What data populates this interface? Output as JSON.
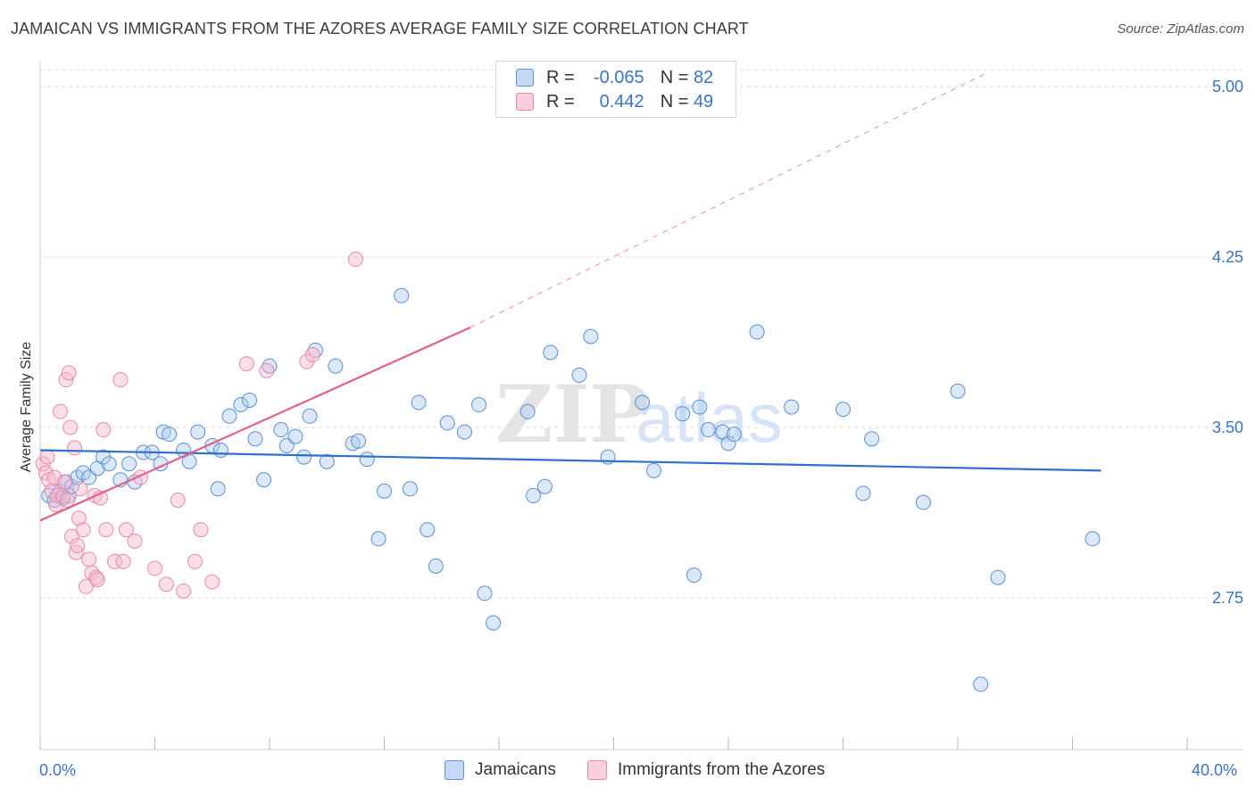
{
  "header": {
    "title": "JAMAICAN VS IMMIGRANTS FROM THE AZORES AVERAGE FAMILY SIZE CORRELATION CHART",
    "source": "Source: ZipAtlas.com"
  },
  "legend": {
    "series1": {
      "r_label": "R = ",
      "r_value": "-0.065",
      "n_label": "N = ",
      "n_value": "82"
    },
    "series2": {
      "r_label": "R = ",
      "r_value": "0.442",
      "n_label": "N = ",
      "n_value": "49"
    }
  },
  "colors": {
    "blue_fill": "#aecbf0",
    "blue_stroke": "#5b8fd6",
    "blue_line": "#2f6fcb",
    "pink_fill": "#f6b9cc",
    "pink_stroke": "#e98aa8",
    "pink_line": "#e0608b",
    "grid": "#dddddd",
    "axis_text": "#3b74c6"
  },
  "chart_data": {
    "type": "scatter",
    "title": "JAMAICAN VS IMMIGRANTS FROM THE AZORES AVERAGE FAMILY SIZE CORRELATION CHART",
    "xlabel": "",
    "ylabel": "Average Family Size",
    "xlim": [
      0,
      40
    ],
    "ylim": [
      2.0,
      5.1
    ],
    "x_tick_labels": [
      "0.0%",
      "40.0%"
    ],
    "y_ticks": [
      2.75,
      3.5,
      4.25,
      5.0
    ],
    "y_tick_labels": [
      "2.75",
      "3.50",
      "4.25",
      "5.00"
    ],
    "grid": true,
    "legend_position": "top-center",
    "watermark": "ZIPatlas",
    "series": [
      {
        "name": "Jamaicans",
        "r": -0.065,
        "n": 82,
        "trend": {
          "x0": 0,
          "y0": 3.4,
          "x1": 37,
          "y1": 3.31
        },
        "points": [
          [
            0.3,
            3.2
          ],
          [
            0.5,
            3.18
          ],
          [
            0.7,
            3.22
          ],
          [
            0.8,
            3.19
          ],
          [
            0.9,
            3.26
          ],
          [
            1.0,
            3.2
          ],
          [
            1.1,
            3.24
          ],
          [
            1.3,
            3.28
          ],
          [
            1.5,
            3.3
          ],
          [
            1.7,
            3.28
          ],
          [
            2.0,
            3.32
          ],
          [
            2.2,
            3.37
          ],
          [
            2.4,
            3.34
          ],
          [
            2.8,
            3.27
          ],
          [
            3.1,
            3.34
          ],
          [
            3.3,
            3.26
          ],
          [
            3.6,
            3.39
          ],
          [
            3.9,
            3.39
          ],
          [
            4.2,
            3.34
          ],
          [
            4.3,
            3.48
          ],
          [
            4.5,
            3.47
          ],
          [
            5.0,
            3.4
          ],
          [
            5.2,
            3.35
          ],
          [
            5.5,
            3.48
          ],
          [
            6.0,
            3.42
          ],
          [
            6.3,
            3.4
          ],
          [
            6.6,
            3.55
          ],
          [
            6.2,
            3.23
          ],
          [
            7.0,
            3.6
          ],
          [
            7.3,
            3.62
          ],
          [
            7.5,
            3.45
          ],
          [
            7.8,
            3.27
          ],
          [
            8.0,
            3.77
          ],
          [
            8.4,
            3.49
          ],
          [
            8.6,
            3.42
          ],
          [
            8.9,
            3.46
          ],
          [
            9.2,
            3.37
          ],
          [
            9.4,
            3.55
          ],
          [
            9.6,
            3.84
          ],
          [
            10.0,
            3.35
          ],
          [
            10.3,
            3.77
          ],
          [
            10.9,
            3.43
          ],
          [
            11.1,
            3.44
          ],
          [
            11.4,
            3.36
          ],
          [
            11.8,
            3.01
          ],
          [
            12.0,
            3.22
          ],
          [
            12.6,
            4.08
          ],
          [
            12.9,
            3.23
          ],
          [
            13.2,
            3.61
          ],
          [
            13.5,
            3.05
          ],
          [
            13.8,
            2.89
          ],
          [
            14.2,
            3.52
          ],
          [
            14.8,
            3.48
          ],
          [
            15.3,
            3.6
          ],
          [
            15.5,
            2.77
          ],
          [
            15.8,
            2.64
          ],
          [
            17.0,
            3.57
          ],
          [
            17.2,
            3.2
          ],
          [
            17.6,
            3.24
          ],
          [
            17.8,
            3.83
          ],
          [
            18.8,
            3.73
          ],
          [
            19.2,
            3.9
          ],
          [
            19.8,
            3.37
          ],
          [
            21.0,
            3.61
          ],
          [
            21.4,
            3.31
          ],
          [
            22.4,
            3.56
          ],
          [
            22.8,
            2.85
          ],
          [
            23.0,
            3.59
          ],
          [
            23.3,
            3.49
          ],
          [
            23.8,
            3.48
          ],
          [
            24.0,
            3.43
          ],
          [
            24.2,
            3.47
          ],
          [
            25.0,
            3.92
          ],
          [
            26.2,
            3.59
          ],
          [
            28.0,
            3.58
          ],
          [
            28.7,
            3.21
          ],
          [
            29.0,
            3.45
          ],
          [
            30.8,
            3.17
          ],
          [
            32.0,
            3.66
          ],
          [
            32.8,
            2.37
          ],
          [
            33.4,
            2.84
          ],
          [
            36.7,
            3.01
          ]
        ]
      },
      {
        "name": "Immigrants from the Azores",
        "r": 0.442,
        "n": 49,
        "trend": {
          "x0": 0,
          "y0": 3.09,
          "x1": 15.0,
          "y1": 3.94
        },
        "trend_dashed_to": {
          "x": 33.0,
          "y": 5.0
        },
        "points": [
          [
            0.1,
            3.34
          ],
          [
            0.2,
            3.3
          ],
          [
            0.25,
            3.37
          ],
          [
            0.3,
            3.27
          ],
          [
            0.4,
            3.22
          ],
          [
            0.5,
            3.28
          ],
          [
            0.55,
            3.16
          ],
          [
            0.6,
            3.2
          ],
          [
            0.7,
            3.57
          ],
          [
            0.8,
            3.2
          ],
          [
            0.85,
            3.26
          ],
          [
            0.9,
            3.71
          ],
          [
            0.95,
            3.18
          ],
          [
            1.0,
            3.74
          ],
          [
            1.05,
            3.5
          ],
          [
            1.1,
            3.02
          ],
          [
            1.2,
            3.41
          ],
          [
            1.25,
            2.95
          ],
          [
            1.3,
            2.98
          ],
          [
            1.35,
            3.1
          ],
          [
            1.4,
            3.23
          ],
          [
            1.5,
            3.05
          ],
          [
            1.6,
            2.8
          ],
          [
            1.7,
            2.92
          ],
          [
            1.8,
            2.86
          ],
          [
            1.9,
            3.2
          ],
          [
            1.95,
            2.84
          ],
          [
            2.0,
            2.83
          ],
          [
            2.1,
            3.19
          ],
          [
            2.2,
            3.49
          ],
          [
            2.3,
            3.05
          ],
          [
            2.6,
            2.91
          ],
          [
            2.8,
            3.71
          ],
          [
            2.9,
            2.91
          ],
          [
            3.0,
            3.05
          ],
          [
            3.3,
            3.0
          ],
          [
            3.5,
            3.28
          ],
          [
            4.0,
            2.88
          ],
          [
            4.4,
            2.81
          ],
          [
            4.8,
            3.18
          ],
          [
            5.0,
            2.78
          ],
          [
            5.4,
            2.91
          ],
          [
            5.6,
            3.05
          ],
          [
            6.0,
            2.82
          ],
          [
            7.2,
            3.78
          ],
          [
            7.9,
            3.75
          ],
          [
            9.3,
            3.79
          ],
          [
            9.5,
            3.82
          ],
          [
            11.0,
            4.24
          ]
        ]
      }
    ]
  },
  "bottom_legend": {
    "item1": "Jamaicans",
    "item2": "Immigrants from the Azores"
  },
  "x_axis": {
    "left_label": "0.0%",
    "right_label": "40.0%"
  }
}
